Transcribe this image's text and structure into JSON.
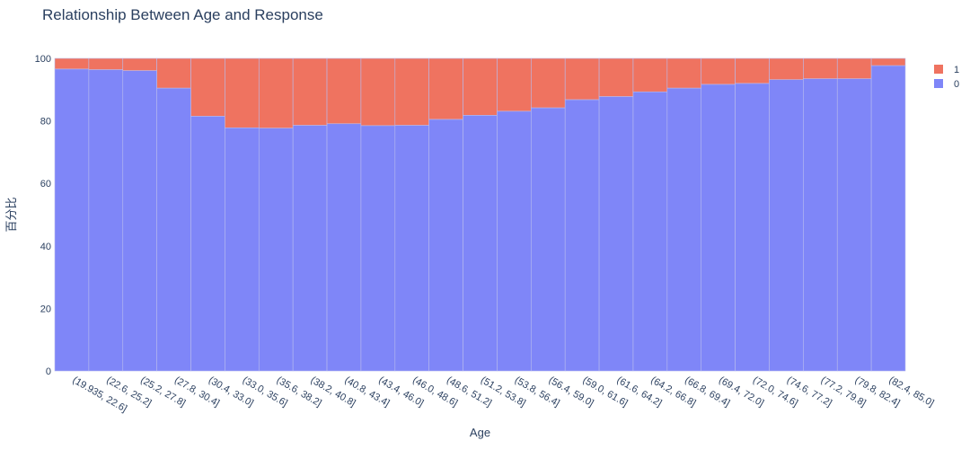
{
  "colors": {
    "series_0": "#7f86f8",
    "series_1": "#ef7360",
    "plot_bg": "#e5ecf6",
    "text": "#2a3f5f",
    "bar_border": "#b9bcee"
  },
  "chart_data": {
    "type": "bar",
    "stacked": true,
    "title": "Relationship Between Age and Response",
    "xlabel": "Age",
    "ylabel": "百分比",
    "ylim": [
      0,
      100
    ],
    "yticks": [
      0,
      20,
      40,
      60,
      80,
      100
    ],
    "legend_position": "top-right",
    "categories": [
      "(19.935, 22.6]",
      "(22.6, 25.2]",
      "(25.2, 27.8]",
      "(27.8, 30.4]",
      "(30.4, 33.0]",
      "(33.0, 35.6]",
      "(35.6, 38.2]",
      "(38.2, 40.8]",
      "(40.8, 43.4]",
      "(43.4, 46.0]",
      "(46.0, 48.6]",
      "(48.6, 51.2]",
      "(51.2, 53.8]",
      "(53.8, 56.4]",
      "(56.4, 59.0]",
      "(59.0, 61.6]",
      "(61.6, 64.2]",
      "(64.2, 66.8]",
      "(66.8, 69.4]",
      "(69.4, 72.0]",
      "(72.0, 74.6]",
      "(74.6, 77.2]",
      "(77.2, 79.8]",
      "(79.8, 82.4]",
      "(82.4, 85.0]"
    ],
    "series": [
      {
        "name": "0",
        "values": [
          96.6,
          96.4,
          96.1,
          90.5,
          81.5,
          77.8,
          77.7,
          78.6,
          79.1,
          78.5,
          78.6,
          80.5,
          81.8,
          83.1,
          84.2,
          86.8,
          87.8,
          89.3,
          90.5,
          91.7,
          92.0,
          93.2,
          93.5,
          93.5,
          97.7
        ]
      },
      {
        "name": "1",
        "values": [
          3.4,
          3.6,
          3.9,
          9.5,
          18.5,
          22.2,
          22.3,
          21.4,
          20.9,
          21.5,
          21.4,
          19.5,
          18.2,
          16.9,
          15.8,
          13.2,
          12.2,
          10.7,
          9.5,
          8.3,
          8.0,
          6.8,
          6.5,
          6.5,
          2.3
        ]
      }
    ]
  }
}
